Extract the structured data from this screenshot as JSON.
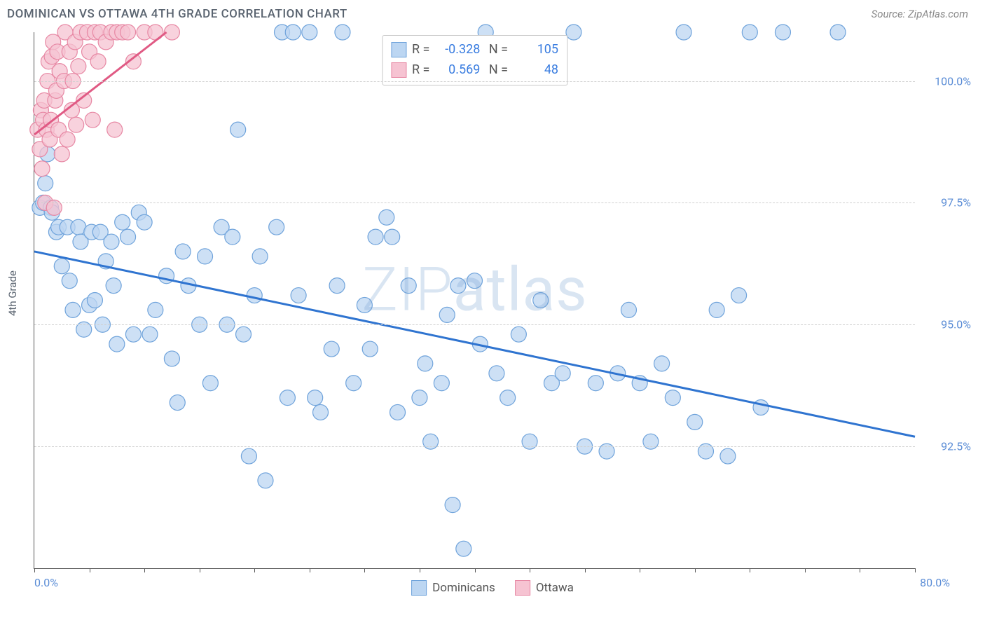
{
  "title": "DOMINICAN VS OTTAWA 4TH GRADE CORRELATION CHART",
  "source": "Source: ZipAtlas.com",
  "ylabel": "4th Grade",
  "watermark_a": "ZIP",
  "watermark_b": "atlas",
  "chart": {
    "type": "scatter",
    "xlim": [
      0,
      80
    ],
    "ylim": [
      90,
      101
    ],
    "yticks": [
      92.5,
      95.0,
      97.5,
      100.0
    ],
    "ytick_labels": [
      "92.5%",
      "95.0%",
      "97.5%",
      "100.0%"
    ],
    "xtick_positions": [
      0,
      5,
      10,
      15,
      20,
      25,
      30,
      35,
      40,
      45,
      50,
      55,
      60,
      65,
      70,
      75,
      80
    ],
    "x_end_labels": {
      "min": "0.0%",
      "max": "80.0%"
    },
    "grid_color": "#d0d0d0",
    "axis_color": "#555555",
    "series": [
      {
        "name": "Dominicans",
        "fill": "#bcd6f2",
        "stroke": "#6fa3db",
        "opacity": 0.75,
        "radius": 11,
        "trend": {
          "x1": 0,
          "y1": 96.5,
          "x2": 80,
          "y2": 92.7,
          "color": "#2f74d0",
          "width": 3
        },
        "R": "-0.328",
        "N": "105",
        "points": [
          [
            0.5,
            97.4
          ],
          [
            0.8,
            97.5
          ],
          [
            1.0,
            97.9
          ],
          [
            1.2,
            98.5
          ],
          [
            1.5,
            97.4
          ],
          [
            1.6,
            97.3
          ],
          [
            2.0,
            96.9
          ],
          [
            2.2,
            97.0
          ],
          [
            2.5,
            96.2
          ],
          [
            3.0,
            97.0
          ],
          [
            3.2,
            95.9
          ],
          [
            3.5,
            95.3
          ],
          [
            4.0,
            97.0
          ],
          [
            4.2,
            96.7
          ],
          [
            4.5,
            94.9
          ],
          [
            5.0,
            95.4
          ],
          [
            5.2,
            96.9
          ],
          [
            5.5,
            95.5
          ],
          [
            6.0,
            96.9
          ],
          [
            6.2,
            95.0
          ],
          [
            6.5,
            96.3
          ],
          [
            7.0,
            96.7
          ],
          [
            7.2,
            95.8
          ],
          [
            7.5,
            94.6
          ],
          [
            8.0,
            97.1
          ],
          [
            8.5,
            96.8
          ],
          [
            9.0,
            94.8
          ],
          [
            9.5,
            97.3
          ],
          [
            10.0,
            97.1
          ],
          [
            10.5,
            94.8
          ],
          [
            11.0,
            95.3
          ],
          [
            12.0,
            96.0
          ],
          [
            12.5,
            94.3
          ],
          [
            13.0,
            93.4
          ],
          [
            13.5,
            96.5
          ],
          [
            14.0,
            95.8
          ],
          [
            15.0,
            95.0
          ],
          [
            15.5,
            96.4
          ],
          [
            16.0,
            93.8
          ],
          [
            17.0,
            97.0
          ],
          [
            17.5,
            95.0
          ],
          [
            18.0,
            96.8
          ],
          [
            18.5,
            99.0
          ],
          [
            19.0,
            94.8
          ],
          [
            19.5,
            92.3
          ],
          [
            20.0,
            95.6
          ],
          [
            20.5,
            96.4
          ],
          [
            21.0,
            91.8
          ],
          [
            22.0,
            97.0
          ],
          [
            22.5,
            101.0
          ],
          [
            23.0,
            93.5
          ],
          [
            23.5,
            101.0
          ],
          [
            24.0,
            95.6
          ],
          [
            25.0,
            101.0
          ],
          [
            25.5,
            93.5
          ],
          [
            26.0,
            93.2
          ],
          [
            27.0,
            94.5
          ],
          [
            27.5,
            95.8
          ],
          [
            28.0,
            101.0
          ],
          [
            29.0,
            93.8
          ],
          [
            30.0,
            95.4
          ],
          [
            30.5,
            94.5
          ],
          [
            31.0,
            96.8
          ],
          [
            32.0,
            97.2
          ],
          [
            32.5,
            96.8
          ],
          [
            33.0,
            93.2
          ],
          [
            34.0,
            95.8
          ],
          [
            35.0,
            93.5
          ],
          [
            35.5,
            94.2
          ],
          [
            36.0,
            92.6
          ],
          [
            37.0,
            93.8
          ],
          [
            37.5,
            95.2
          ],
          [
            38.0,
            91.3
          ],
          [
            38.5,
            95.8
          ],
          [
            39.0,
            90.4
          ],
          [
            40.0,
            95.9
          ],
          [
            40.5,
            94.6
          ],
          [
            41.0,
            101.0
          ],
          [
            42.0,
            94.0
          ],
          [
            43.0,
            93.5
          ],
          [
            44.0,
            94.8
          ],
          [
            45.0,
            92.6
          ],
          [
            46.0,
            95.5
          ],
          [
            47.0,
            93.8
          ],
          [
            48.0,
            94.0
          ],
          [
            49.0,
            101.0
          ],
          [
            50.0,
            92.5
          ],
          [
            51.0,
            93.8
          ],
          [
            52.0,
            92.4
          ],
          [
            53.0,
            94.0
          ],
          [
            54.0,
            95.3
          ],
          [
            55.0,
            93.8
          ],
          [
            56.0,
            92.6
          ],
          [
            57.0,
            94.2
          ],
          [
            58.0,
            93.5
          ],
          [
            59.0,
            101.0
          ],
          [
            60.0,
            93.0
          ],
          [
            61.0,
            92.4
          ],
          [
            62.0,
            95.3
          ],
          [
            63.0,
            92.3
          ],
          [
            64.0,
            95.6
          ],
          [
            65.0,
            101.0
          ],
          [
            66.0,
            93.3
          ],
          [
            68.0,
            101.0
          ],
          [
            73.0,
            101.0
          ]
        ]
      },
      {
        "name": "Ottawa",
        "fill": "#f6c3d2",
        "stroke": "#e788a4",
        "opacity": 0.75,
        "radius": 11,
        "trend": {
          "x1": 0,
          "y1": 98.9,
          "x2": 12,
          "y2": 101.0,
          "color": "#e05a84",
          "width": 3
        },
        "R": "0.569",
        "N": "48",
        "points": [
          [
            0.3,
            99.0
          ],
          [
            0.5,
            98.6
          ],
          [
            0.6,
            99.4
          ],
          [
            0.7,
            98.2
          ],
          [
            0.8,
            99.2
          ],
          [
            0.9,
            99.6
          ],
          [
            1.0,
            97.5
          ],
          [
            1.1,
            99.0
          ],
          [
            1.2,
            100.0
          ],
          [
            1.3,
            100.4
          ],
          [
            1.4,
            98.8
          ],
          [
            1.5,
            99.2
          ],
          [
            1.6,
            100.5
          ],
          [
            1.7,
            100.8
          ],
          [
            1.8,
            97.4
          ],
          [
            1.9,
            99.6
          ],
          [
            2.0,
            99.8
          ],
          [
            2.1,
            100.6
          ],
          [
            2.2,
            99.0
          ],
          [
            2.3,
            100.2
          ],
          [
            2.5,
            98.5
          ],
          [
            2.7,
            100.0
          ],
          [
            2.8,
            101.0
          ],
          [
            3.0,
            98.8
          ],
          [
            3.2,
            100.6
          ],
          [
            3.4,
            99.4
          ],
          [
            3.5,
            100.0
          ],
          [
            3.7,
            100.8
          ],
          [
            3.8,
            99.1
          ],
          [
            4.0,
            100.3
          ],
          [
            4.2,
            101.0
          ],
          [
            4.5,
            99.6
          ],
          [
            4.8,
            101.0
          ],
          [
            5.0,
            100.6
          ],
          [
            5.3,
            99.2
          ],
          [
            5.5,
            101.0
          ],
          [
            5.8,
            100.4
          ],
          [
            6.0,
            101.0
          ],
          [
            6.5,
            100.8
          ],
          [
            7.0,
            101.0
          ],
          [
            7.3,
            99.0
          ],
          [
            7.5,
            101.0
          ],
          [
            8.0,
            101.0
          ],
          [
            8.5,
            101.0
          ],
          [
            9.0,
            100.4
          ],
          [
            10.0,
            101.0
          ],
          [
            11.0,
            101.0
          ],
          [
            12.5,
            101.0
          ]
        ]
      }
    ]
  },
  "legend_bottom": [
    {
      "label": "Dominicans",
      "fill": "#bcd6f2",
      "stroke": "#6fa3db"
    },
    {
      "label": "Ottawa",
      "fill": "#f6c3d2",
      "stroke": "#e788a4"
    }
  ]
}
